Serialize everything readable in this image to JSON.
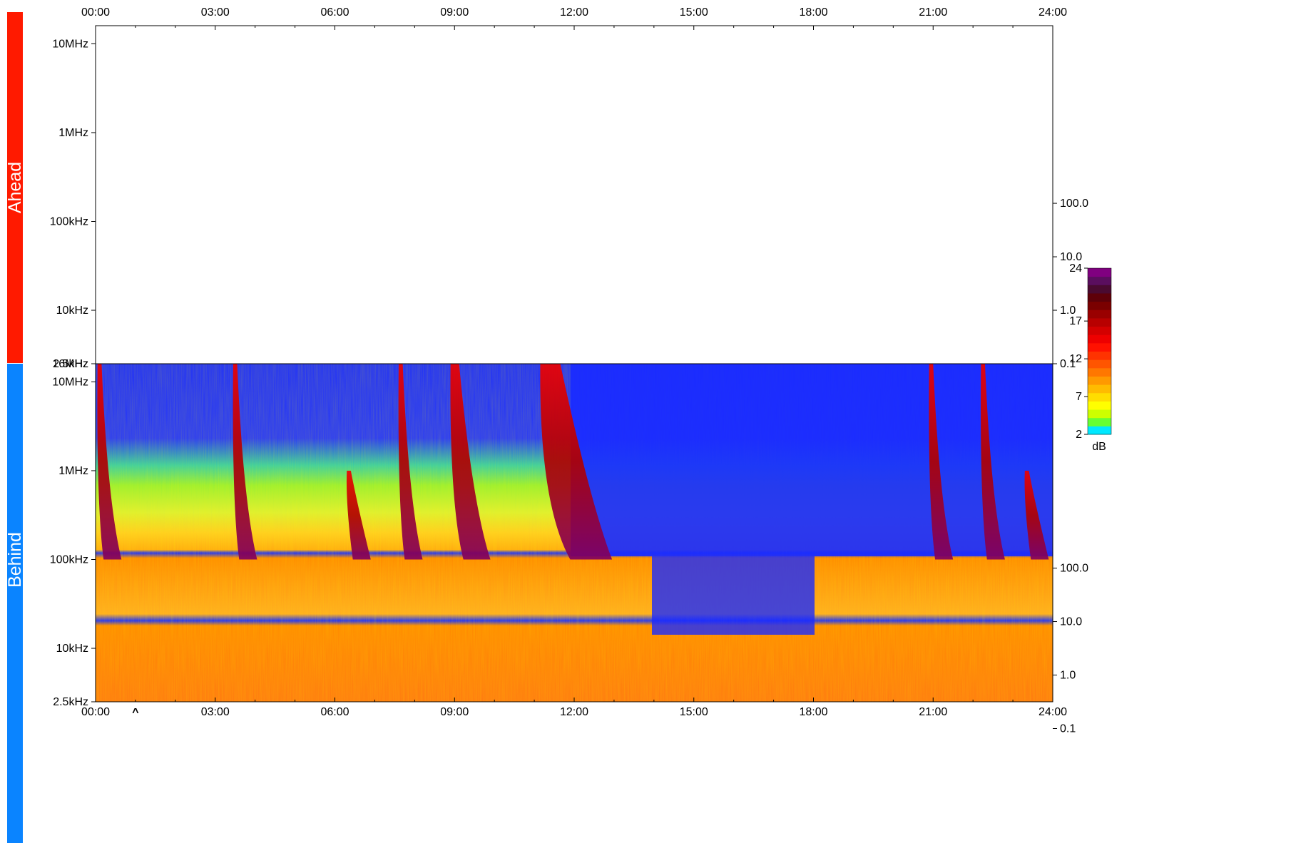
{
  "chart_data": {
    "type": "heatmap",
    "title": "",
    "x_axis": {
      "ticks": [
        "00:00",
        "03:00",
        "06:00",
        "09:00",
        "12:00",
        "15:00",
        "18:00",
        "21:00",
        "24:00"
      ],
      "range_hours": [
        0,
        24
      ]
    },
    "panels": [
      {
        "name": "Ahead",
        "color": "#ff1a00",
        "has_data": false,
        "y_ticks": [
          "2.5kHz",
          "10kHz",
          "100kHz",
          "1MHz",
          "10MHz"
        ],
        "y_range_hz": [
          2500,
          16000000
        ],
        "right_ticks": [
          "0.1",
          "1.0",
          "10.0",
          "100.0"
        ],
        "right_tick_freqs_hz": [
          2500,
          10000,
          40000,
          160000
        ]
      },
      {
        "name": "Behind",
        "color": "#0a84ff",
        "has_data": true,
        "y_ticks": [
          "16MHz",
          "10MHz",
          "1MHz",
          "100kHz",
          "10kHz",
          "2.5kHz"
        ],
        "y_range_hz": [
          2500,
          16000000
        ],
        "right_ticks": [
          "100.0",
          "10.0",
          "1.0",
          "0.1"
        ],
        "right_tick_freqs_hz": [
          80000,
          20000,
          5000,
          1250
        ]
      }
    ],
    "marker": {
      "label": "^",
      "time_hours": 1.0
    },
    "colorbar": {
      "unit": "dB",
      "ticks": [
        24,
        17,
        12,
        7,
        2
      ],
      "range": [
        2,
        24
      ],
      "colors": [
        "#00e8ff",
        "#66ff33",
        "#ccff00",
        "#ffff00",
        "#ffdd00",
        "#ffbb00",
        "#ff9900",
        "#ff7700",
        "#ff5500",
        "#ff3300",
        "#ff1100",
        "#ee0000",
        "#d40000",
        "#b80000",
        "#9a0000",
        "#7a0000",
        "#5e0008",
        "#4a0a30",
        "#5a0e5e",
        "#800080"
      ]
    },
    "bursts": [
      {
        "start_hours": 0.05,
        "drift": "fast",
        "extent": "full"
      },
      {
        "start_hours": 3.45,
        "drift": "fast",
        "extent": "full"
      },
      {
        "start_hours": 6.3,
        "drift": "fast",
        "extent": "partial"
      },
      {
        "start_hours": 7.6,
        "drift": "fast",
        "extent": "full"
      },
      {
        "start_hours": 8.9,
        "drift": "medium",
        "extent": "full"
      },
      {
        "start_hours": 11.15,
        "drift": "slow",
        "extent": "intense"
      },
      {
        "start_hours": 20.9,
        "drift": "fast",
        "extent": "full"
      },
      {
        "start_hours": 22.2,
        "drift": "fast",
        "extent": "full"
      },
      {
        "start_hours": 23.3,
        "drift": "fast",
        "extent": "partial"
      }
    ]
  }
}
